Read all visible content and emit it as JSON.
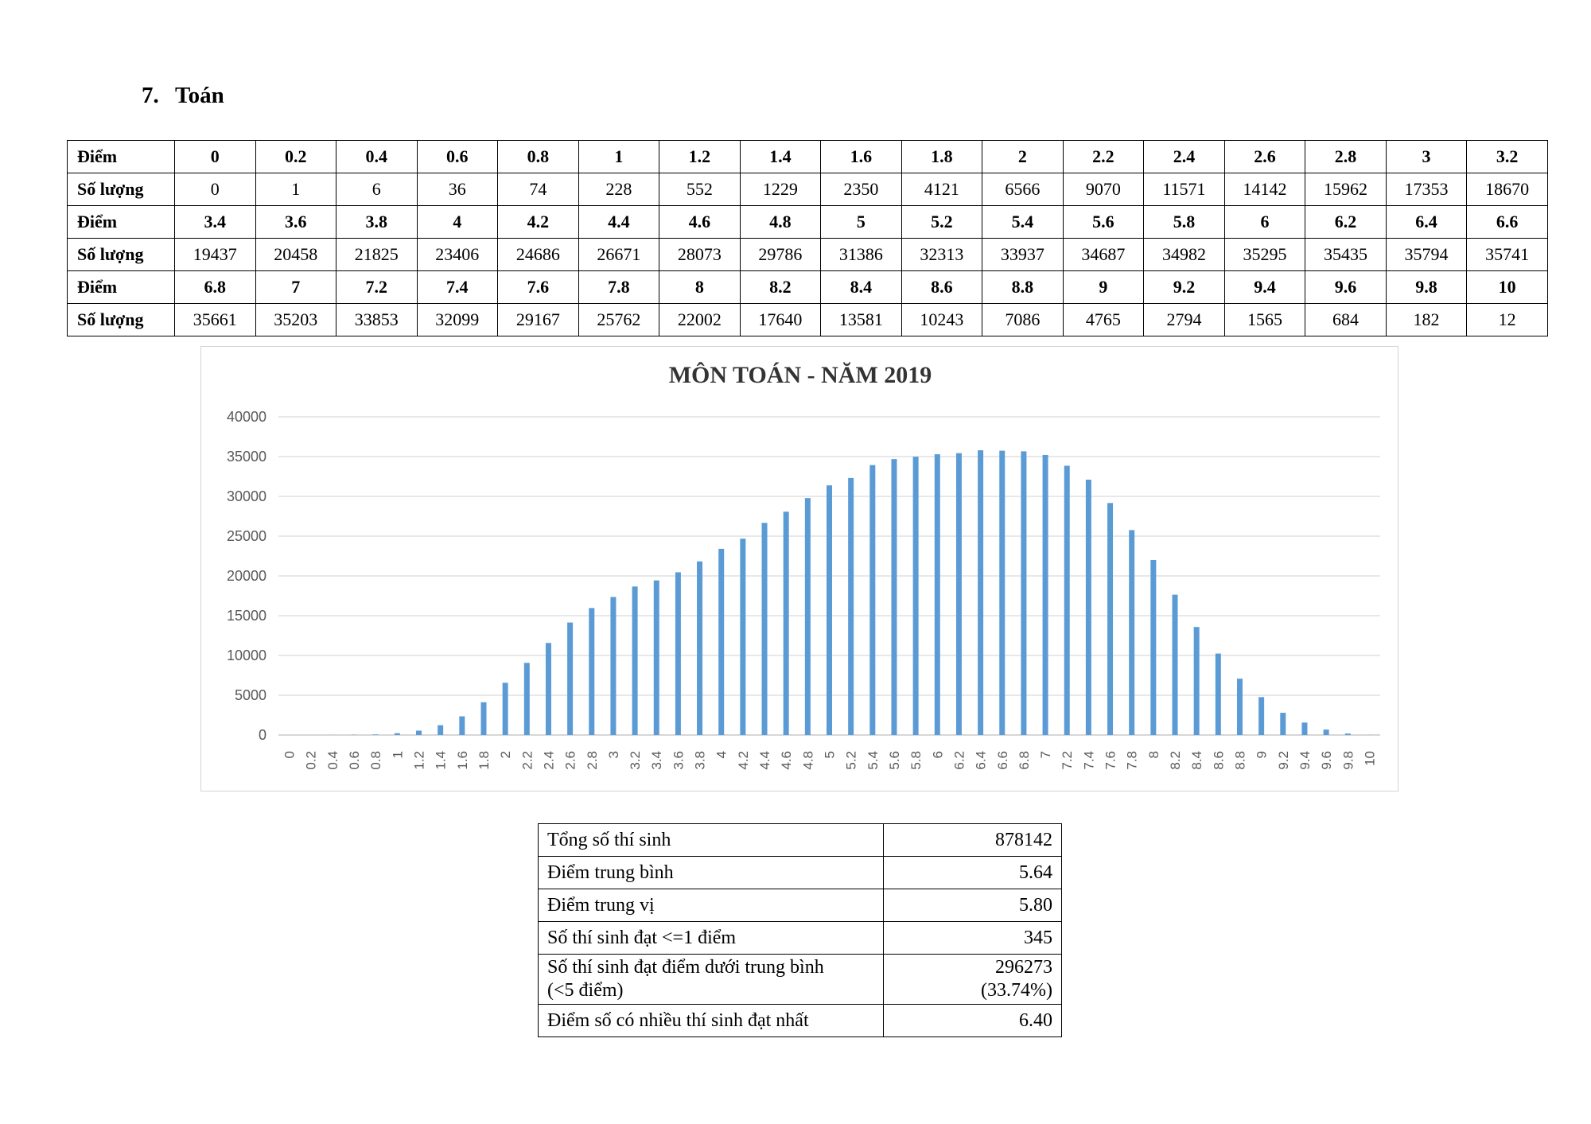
{
  "section": {
    "number": "7.",
    "title": "Toán"
  },
  "score_table": {
    "point_label": "Điểm",
    "count_label": "Số lượng",
    "blocks": [
      {
        "points": [
          "0",
          "0.2",
          "0.4",
          "0.6",
          "0.8",
          "1",
          "1.2",
          "1.4",
          "1.6",
          "1.8",
          "2",
          "2.2",
          "2.4",
          "2.6",
          "2.8",
          "3",
          "3.2"
        ],
        "counts": [
          "0",
          "1",
          "6",
          "36",
          "74",
          "228",
          "552",
          "1229",
          "2350",
          "4121",
          "6566",
          "9070",
          "11571",
          "14142",
          "15962",
          "17353",
          "18670"
        ]
      },
      {
        "points": [
          "3.4",
          "3.6",
          "3.8",
          "4",
          "4.2",
          "4.4",
          "4.6",
          "4.8",
          "5",
          "5.2",
          "5.4",
          "5.6",
          "5.8",
          "6",
          "6.2",
          "6.4",
          "6.6"
        ],
        "counts": [
          "19437",
          "20458",
          "21825",
          "23406",
          "24686",
          "26671",
          "28073",
          "29786",
          "31386",
          "32313",
          "33937",
          "34687",
          "34982",
          "35295",
          "35435",
          "35794",
          "35741"
        ]
      },
      {
        "points": [
          "6.8",
          "7",
          "7.2",
          "7.4",
          "7.6",
          "7.8",
          "8",
          "8.2",
          "8.4",
          "8.6",
          "8.8",
          "9",
          "9.2",
          "9.4",
          "9.6",
          "9.8",
          "10"
        ],
        "counts": [
          "35661",
          "35203",
          "33853",
          "32099",
          "29167",
          "25762",
          "22002",
          "17640",
          "13581",
          "10243",
          "7086",
          "4765",
          "2794",
          "1565",
          "684",
          "182",
          "12"
        ]
      }
    ]
  },
  "chart_data": {
    "type": "bar",
    "title": "MÔN TOÁN - NĂM 2019",
    "xlabel": "",
    "ylabel": "",
    "ylim": [
      0,
      40000
    ],
    "yticks": [
      0,
      5000,
      10000,
      15000,
      20000,
      25000,
      30000,
      35000,
      40000
    ],
    "grid": true,
    "legend": "none",
    "bar_color": "#5b9bd5",
    "categories": [
      "0",
      "0.2",
      "0.4",
      "0.6",
      "0.8",
      "1",
      "1.2",
      "1.4",
      "1.6",
      "1.8",
      "2",
      "2.2",
      "2.4",
      "2.6",
      "2.8",
      "3",
      "3.2",
      "3.4",
      "3.6",
      "3.8",
      "4",
      "4.2",
      "4.4",
      "4.6",
      "4.8",
      "5",
      "5.2",
      "5.4",
      "5.6",
      "5.8",
      "6",
      "6.2",
      "6.4",
      "6.6",
      "6.8",
      "7",
      "7.2",
      "7.4",
      "7.6",
      "7.8",
      "8",
      "8.2",
      "8.4",
      "8.6",
      "8.8",
      "9",
      "9.2",
      "9.4",
      "9.6",
      "9.8",
      "10"
    ],
    "values": [
      0,
      1,
      6,
      36,
      74,
      228,
      552,
      1229,
      2350,
      4121,
      6566,
      9070,
      11571,
      14142,
      15962,
      17353,
      18670,
      19437,
      20458,
      21825,
      23406,
      24686,
      26671,
      28073,
      29786,
      31386,
      32313,
      33937,
      34687,
      34982,
      35295,
      35435,
      35794,
      35741,
      35661,
      35203,
      33853,
      32099,
      29167,
      25762,
      22002,
      17640,
      13581,
      10243,
      7086,
      4765,
      2794,
      1565,
      684,
      182,
      12
    ]
  },
  "stats": [
    {
      "label": "Tổng số thí sinh",
      "value": "878142"
    },
    {
      "label": "Điểm trung bình",
      "value": "5.64"
    },
    {
      "label": "Điểm trung vị",
      "value": "5.80"
    },
    {
      "label": "Số thí sinh đạt <=1 điểm",
      "value": "345"
    },
    {
      "label_line1": "Số thí sinh đạt điểm dưới trung bình",
      "label_line2": "(<5 điểm)",
      "value_line1": "296273",
      "value_line2": "(33.74%)"
    },
    {
      "label": "Điểm số có nhiều thí sinh đạt nhất",
      "value": "6.40"
    }
  ]
}
